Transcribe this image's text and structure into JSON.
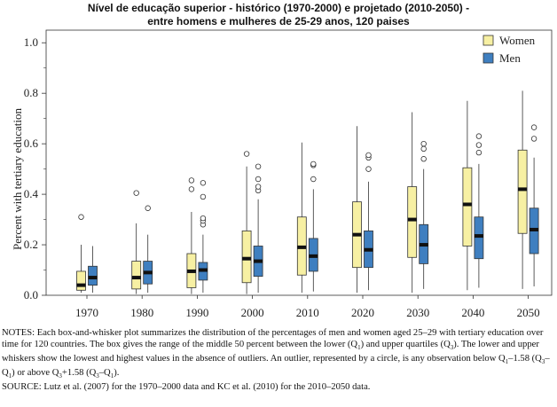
{
  "title": {
    "line1": "Nível de educação superior  - histórico (1970-2000) e projetado (2010-2050)  -",
    "line2": "entre homens e mulheres de 25-29 anos, 120 paises"
  },
  "chart_data": {
    "type": "box",
    "ylabel": "Percent with tertiary education",
    "xlabel": "",
    "ylim": [
      0,
      1.05
    ],
    "yticks": [
      "0.0",
      "0.2",
      "0.4",
      "0.6",
      "0.8",
      "1.0"
    ],
    "categories": [
      "1970",
      "1980",
      "1990",
      "2000",
      "2010",
      "2020",
      "2030",
      "2040",
      "2050"
    ],
    "legend_position": "top-right",
    "series": [
      {
        "name": "Women",
        "color": "#f7f0a3",
        "boxes": [
          {
            "low": 0.01,
            "q1": 0.02,
            "median": 0.04,
            "q3": 0.095,
            "high": 0.2,
            "outliers": [
              0.31
            ]
          },
          {
            "low": 0.005,
            "q1": 0.025,
            "median": 0.07,
            "q3": 0.135,
            "high": 0.285,
            "outliers": [
              0.405
            ]
          },
          {
            "low": 0.005,
            "q1": 0.03,
            "median": 0.095,
            "q3": 0.165,
            "high": 0.33,
            "outliers": [
              0.42,
              0.455
            ]
          },
          {
            "low": 0.005,
            "q1": 0.05,
            "median": 0.145,
            "q3": 0.255,
            "high": 0.51,
            "outliers": [
              0.56
            ]
          },
          {
            "low": 0.01,
            "q1": 0.08,
            "median": 0.19,
            "q3": 0.31,
            "high": 0.605,
            "outliers": []
          },
          {
            "low": 0.01,
            "q1": 0.11,
            "median": 0.24,
            "q3": 0.37,
            "high": 0.67,
            "outliers": []
          },
          {
            "low": 0.01,
            "q1": 0.15,
            "median": 0.3,
            "q3": 0.43,
            "high": 0.725,
            "outliers": []
          },
          {
            "low": 0.02,
            "q1": 0.195,
            "median": 0.36,
            "q3": 0.505,
            "high": 0.77,
            "outliers": []
          },
          {
            "low": 0.025,
            "q1": 0.245,
            "median": 0.42,
            "q3": 0.575,
            "high": 0.81,
            "outliers": []
          }
        ]
      },
      {
        "name": "Men",
        "color": "#3f7fc0",
        "boxes": [
          {
            "low": 0.01,
            "q1": 0.04,
            "median": 0.07,
            "q3": 0.115,
            "high": 0.195,
            "outliers": []
          },
          {
            "low": 0.01,
            "q1": 0.045,
            "median": 0.09,
            "q3": 0.135,
            "high": 0.24,
            "outliers": [
              0.345
            ]
          },
          {
            "low": 0.01,
            "q1": 0.06,
            "median": 0.1,
            "q3": 0.13,
            "high": 0.24,
            "outliers": [
              0.28,
              0.295,
              0.305,
              0.39,
              0.445
            ]
          },
          {
            "low": 0.01,
            "q1": 0.075,
            "median": 0.135,
            "q3": 0.195,
            "high": 0.38,
            "outliers": [
              0.415,
              0.43,
              0.46,
              0.51
            ]
          },
          {
            "low": 0.015,
            "q1": 0.095,
            "median": 0.155,
            "q3": 0.225,
            "high": 0.42,
            "outliers": [
              0.46,
              0.515,
              0.52
            ]
          },
          {
            "low": 0.02,
            "q1": 0.11,
            "median": 0.18,
            "q3": 0.255,
            "high": 0.45,
            "outliers": [
              0.5,
              0.545,
              0.555
            ]
          },
          {
            "low": 0.025,
            "q1": 0.125,
            "median": 0.2,
            "q3": 0.28,
            "high": 0.5,
            "outliers": [
              0.54,
              0.58,
              0.6
            ]
          },
          {
            "low": 0.03,
            "q1": 0.145,
            "median": 0.235,
            "q3": 0.31,
            "high": 0.52,
            "outliers": [
              0.565,
              0.595,
              0.63
            ]
          },
          {
            "low": 0.035,
            "q1": 0.165,
            "median": 0.26,
            "q3": 0.345,
            "high": 0.545,
            "outliers": [
              0.62,
              0.665
            ]
          }
        ]
      }
    ]
  },
  "notes": {
    "p1_a": "NOTES: Each box-and-whisker plot summarizes the distribution of the percentages of men and women aged 25–29 with tertiary education over time for 120 countries. The box gives the range of the middle 50 percent between the lower (Q",
    "p1_b": ") and upper quartiles (Q",
    "p1_c": "). The lower and upper whiskers show the lowest and highest values in the absence of outliers. An outlier, represented by a circle, is any observation below Q",
    "p1_d": "–1.58 (Q",
    "p1_e": "–Q",
    "p1_f": ") or above Q",
    "p1_g": "+1.58 (Q",
    "p1_h": "–Q",
    "p1_i": ").",
    "sub1": "1",
    "sub3": "3",
    "source": "SOURCE: Lutz et al. (2007) for the 1970–2000 data and KC et al. (2010) for the 2010–2050 data."
  }
}
